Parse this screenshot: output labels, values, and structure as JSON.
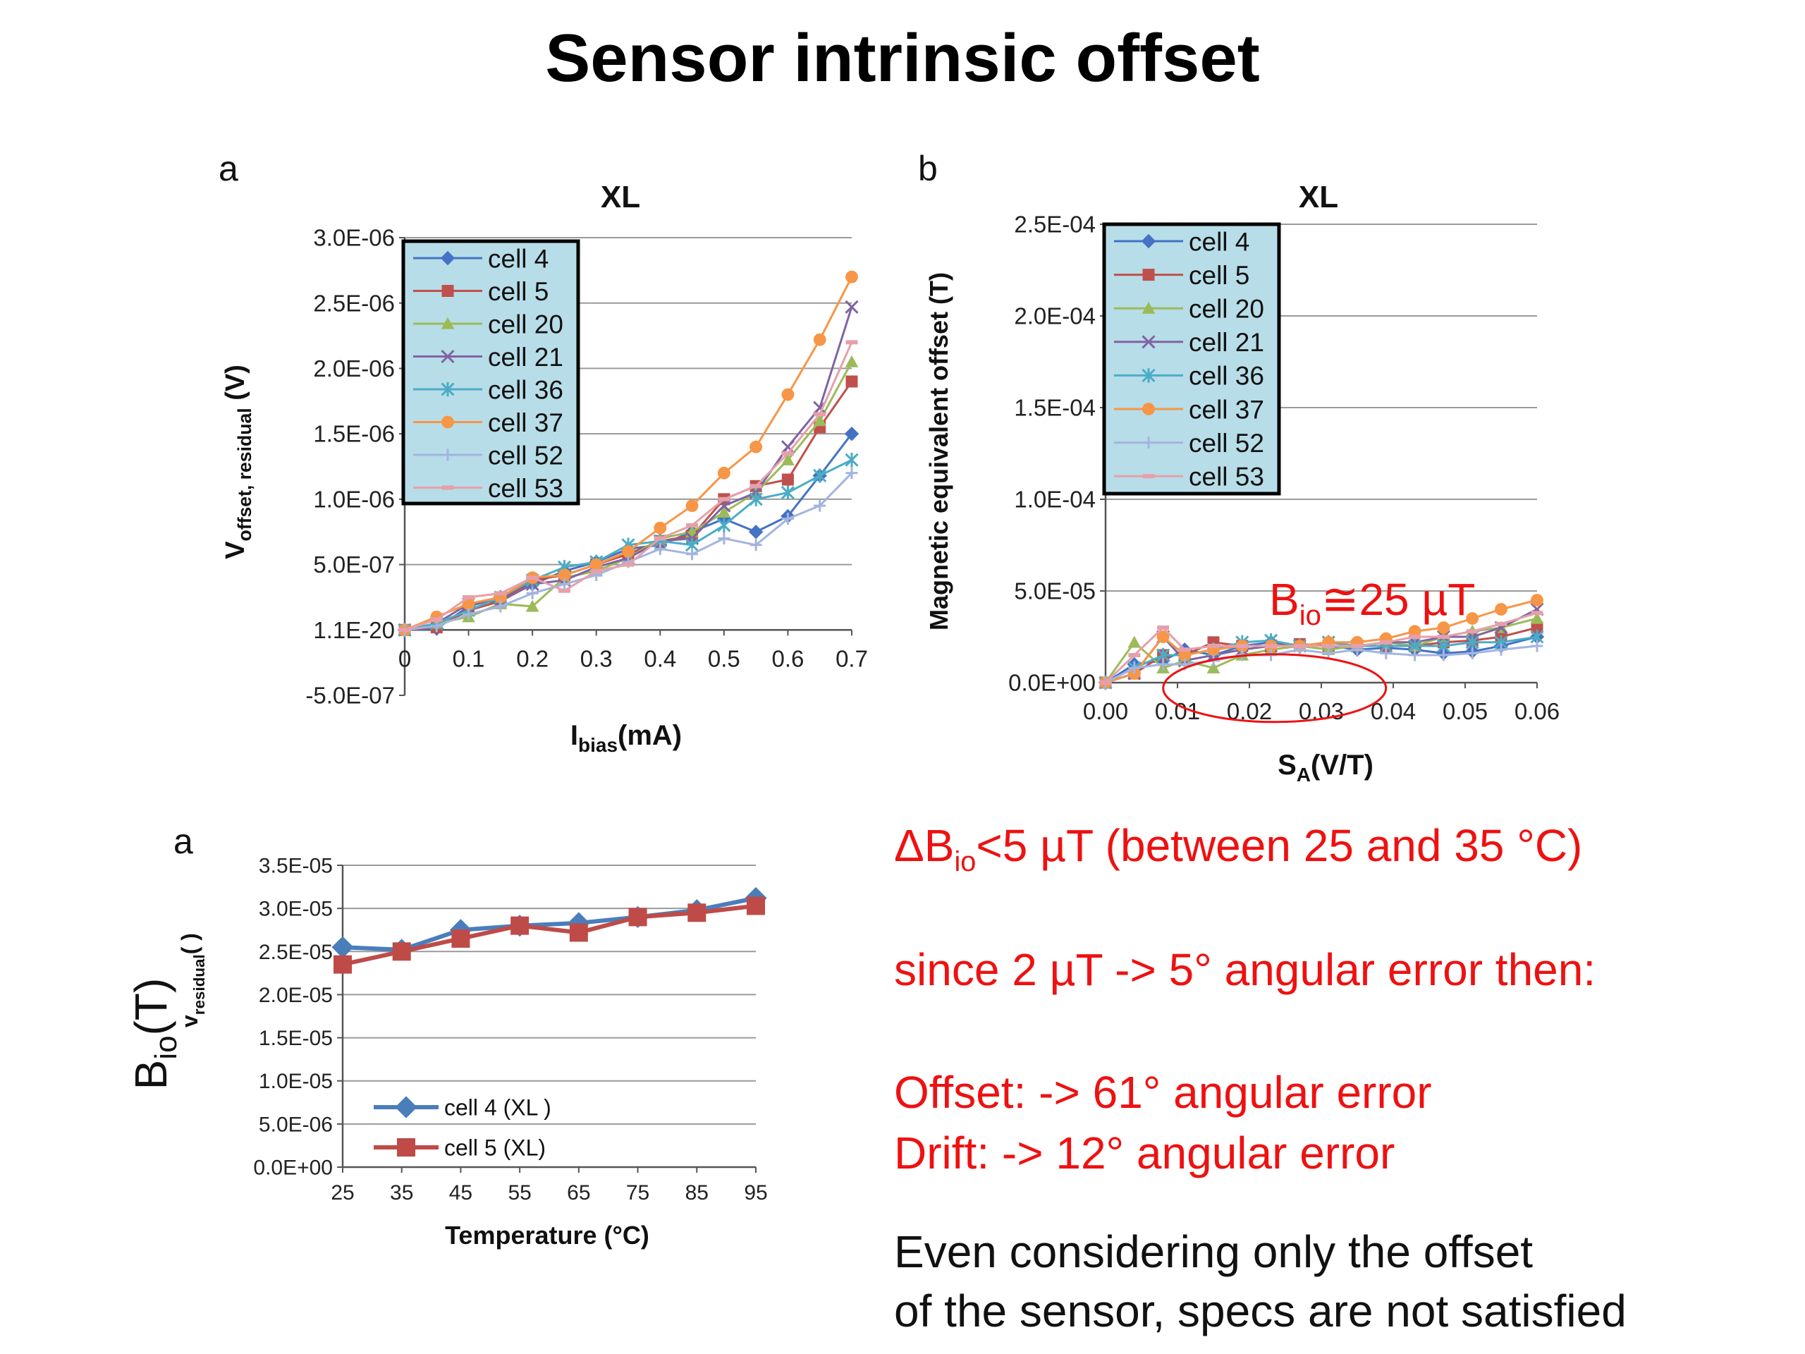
{
  "title": "Sensor intrinsic offset",
  "colors": {
    "cell 4": "#4472c4",
    "cell 5": "#c0504d",
    "cell 20": "#9bbb59",
    "cell 21": "#8064a2",
    "cell 36": "#4bacc6",
    "cell 37": "#f79646",
    "cell 52": "#a3b4e0",
    "cell 53": "#e6a0aa",
    "legend_fill": "#b7dde8",
    "annotation": "#ee1111"
  },
  "markers": {
    "cell 4": "diamond",
    "cell 5": "square",
    "cell 20": "triangle",
    "cell 21": "x",
    "cell 36": "asterisk",
    "cell 37": "circle",
    "cell 52": "plus",
    "cell 53": "dash"
  },
  "chart_data": [
    {
      "panel_label": "a",
      "type": "line",
      "title": "XL",
      "xlabel_main": "I",
      "xlabel_sub": "bias",
      "xlabel_unit": "(mA)",
      "ylabel_main": "V",
      "ylabel_sub": "offset, residual",
      "ylabel_unit": " (V)",
      "xlim": [
        0,
        0.7
      ],
      "ylim": [
        -5e-07,
        3e-06
      ],
      "yticks": [
        -5e-07,
        1.1e-20,
        5e-07,
        1e-06,
        1.5e-06,
        2e-06,
        2.5e-06,
        3e-06
      ],
      "ytick_labels": [
        "-5.0E-07",
        "1.1E-20",
        "5.0E-07",
        "1.0E-06",
        "1.5E-06",
        "2.0E-06",
        "2.5E-06",
        "3.0E-06"
      ],
      "xticks": [
        0,
        0.1,
        0.2,
        0.3,
        0.4,
        0.5,
        0.6,
        0.7
      ],
      "xtick_labels": [
        "0",
        "0.1",
        "0.2",
        "0.3",
        "0.4",
        "0.5",
        "0.6",
        "0.7"
      ],
      "grid": true,
      "legend_position": "top-left",
      "x": [
        0,
        0.05,
        0.1,
        0.15,
        0.2,
        0.25,
        0.3,
        0.35,
        0.4,
        0.45,
        0.5,
        0.55,
        0.6,
        0.65,
        0.7
      ],
      "series": [
        {
          "name": "cell 4",
          "values": [
            0,
            1e-08,
            1.8e-07,
            2.5e-07,
            3.5e-07,
            4.5e-07,
            5.2e-07,
            6.2e-07,
            6.5e-07,
            7.5e-07,
            8.5e-07,
            7.5e-07,
            8.7e-07,
            1.18e-06,
            1.5e-06
          ]
        },
        {
          "name": "cell 5",
          "values": [
            0,
            2e-08,
            1.5e-07,
            2.2e-07,
            3.8e-07,
            4.2e-07,
            5e-07,
            5.8e-07,
            6.8e-07,
            7.2e-07,
            1e-06,
            1.1e-06,
            1.15e-06,
            1.55e-06,
            1.9e-06
          ]
        },
        {
          "name": "cell 20",
          "values": [
            0,
            5e-08,
            1e-07,
            2e-07,
            1.8e-07,
            4e-07,
            4.5e-07,
            5.5e-07,
            7e-07,
            7.5e-07,
            9e-07,
            1.05e-06,
            1.3e-06,
            1.6e-06,
            2.05e-06
          ]
        },
        {
          "name": "cell 21",
          "values": [
            0,
            5e-08,
            2e-07,
            2.2e-07,
            3.5e-07,
            3.8e-07,
            4.8e-07,
            5.5e-07,
            6.8e-07,
            7e-07,
            9.5e-07,
            1.05e-06,
            1.4e-06,
            1.7e-06,
            2.47e-06
          ]
        },
        {
          "name": "cell 36",
          "values": [
            0,
            5e-08,
            1.5e-07,
            2.5e-07,
            3.8e-07,
            4.8e-07,
            5.2e-07,
            6.5e-07,
            6.8e-07,
            6.5e-07,
            8e-07,
            1e-06,
            1.05e-06,
            1.18e-06,
            1.3e-06
          ]
        },
        {
          "name": "cell 37",
          "values": [
            0,
            1e-07,
            2e-07,
            2.5e-07,
            4e-07,
            4.2e-07,
            5e-07,
            6e-07,
            7.8e-07,
            9.5e-07,
            1.2e-06,
            1.4e-06,
            1.8e-06,
            2.22e-06,
            2.7e-06
          ]
        },
        {
          "name": "cell 52",
          "values": [
            0,
            3e-08,
            1.2e-07,
            1.8e-07,
            2.8e-07,
            3.5e-07,
            4.2e-07,
            5.2e-07,
            6.2e-07,
            5.8e-07,
            7e-07,
            6.5e-07,
            8.5e-07,
            9.5e-07,
            1.2e-06
          ]
        },
        {
          "name": "cell 53",
          "values": [
            0,
            8e-08,
            2.5e-07,
            2.8e-07,
            4e-07,
            3e-07,
            4.5e-07,
            5e-07,
            7e-07,
            8e-07,
            1e-06,
            1.1e-06,
            1.35e-06,
            1.65e-06,
            2.2e-06
          ]
        }
      ]
    },
    {
      "panel_label": "b",
      "type": "line",
      "title": "XL",
      "xlabel_main": "S",
      "xlabel_sub": "A",
      "xlabel_unit": "(V/T)",
      "ylabel_main": "Magnetic equivalent offset",
      "ylabel_unit": "  (T)",
      "xlim": [
        0,
        0.06
      ],
      "ylim": [
        0,
        0.00025
      ],
      "yticks": [
        0,
        5e-05,
        0.0001,
        0.00015,
        0.0002,
        0.00025
      ],
      "ytick_labels": [
        "0.0E+00",
        "5.0E-05",
        "1.0E-04",
        "1.5E-04",
        "2.0E-04",
        "2.5E-04"
      ],
      "xticks": [
        0,
        0.01,
        0.02,
        0.03,
        0.04,
        0.05,
        0.06
      ],
      "xtick_labels": [
        "0.00",
        "0.01",
        "0.02",
        "0.03",
        "0.04",
        "0.05",
        "0.06"
      ],
      "grid": true,
      "legend_position": "top-left",
      "annotation": "B",
      "annotation_sub": "io",
      "annotation_rest": "≅25 µT",
      "x": [
        0,
        0.004,
        0.008,
        0.011,
        0.015,
        0.019,
        0.023,
        0.027,
        0.031,
        0.035,
        0.039,
        0.043,
        0.047,
        0.051,
        0.055,
        0.06
      ],
      "series": [
        {
          "name": "cell 4",
          "values": [
            0,
            1e-05,
            1.2e-05,
            1.8e-05,
            1.5e-05,
            2e-05,
            2.2e-05,
            2e-05,
            2e-05,
            1.8e-05,
            1.9e-05,
            1.8e-05,
            1.6e-05,
            1.7e-05,
            2e-05,
            2.5e-05
          ]
        },
        {
          "name": "cell 5",
          "values": [
            0,
            5e-06,
            1.5e-05,
            1.5e-05,
            2.2e-05,
            2e-05,
            2e-05,
            2.1e-05,
            2e-05,
            2e-05,
            2e-05,
            2e-05,
            2.2e-05,
            2.3e-05,
            2.5e-05,
            3e-05
          ]
        },
        {
          "name": "cell 20",
          "values": [
            0,
            2.2e-05,
            8e-06,
            1.2e-05,
            8e-06,
            1.5e-05,
            1.8e-05,
            2e-05,
            1.8e-05,
            2e-05,
            2.2e-05,
            2e-05,
            2.5e-05,
            2.8e-05,
            3e-05,
            3.5e-05
          ]
        },
        {
          "name": "cell 21",
          "values": [
            0,
            5e-06,
            2.5e-05,
            1.2e-05,
            1.5e-05,
            1.8e-05,
            2e-05,
            2e-05,
            2.2e-05,
            2e-05,
            2.2e-05,
            2.2e-05,
            2.5e-05,
            2.5e-05,
            3e-05,
            4e-05
          ]
        },
        {
          "name": "cell 36",
          "values": [
            0,
            8e-06,
            1.5e-05,
            1.5e-05,
            1.8e-05,
            2.2e-05,
            2.3e-05,
            2e-05,
            2.2e-05,
            2e-05,
            2e-05,
            2e-05,
            2e-05,
            2.2e-05,
            2.2e-05,
            2.5e-05
          ]
        },
        {
          "name": "cell 37",
          "values": [
            0,
            5e-06,
            2.5e-05,
            1.5e-05,
            1.8e-05,
            2e-05,
            2e-05,
            2e-05,
            2.2e-05,
            2.2e-05,
            2.4e-05,
            2.8e-05,
            3e-05,
            3.5e-05,
            4e-05,
            4.5e-05
          ]
        },
        {
          "name": "cell 52",
          "values": [
            0,
            8e-06,
            1e-05,
            1e-05,
            1.2e-05,
            1.5e-05,
            1.5e-05,
            1.8e-05,
            1.6e-05,
            1.8e-05,
            1.6e-05,
            1.5e-05,
            1.5e-05,
            1.6e-05,
            1.8e-05,
            2e-05
          ]
        },
        {
          "name": "cell 53",
          "values": [
            0,
            1.5e-05,
            3e-05,
            1.8e-05,
            2e-05,
            2e-05,
            2e-05,
            2e-05,
            2e-05,
            2e-05,
            2.2e-05,
            2.5e-05,
            2.5e-05,
            2.8e-05,
            3.2e-05,
            3.8e-05
          ]
        }
      ]
    },
    {
      "panel_label": "a",
      "type": "line",
      "title": "",
      "xlabel_main": "Temperature (°C)",
      "ylabel_main": "v",
      "ylabel_sub": "residual",
      "ylabel_unit": "( )",
      "outer_ylabel": "B",
      "outer_ylabel_sub": "io",
      "outer_ylabel_unit": "(T)",
      "xlim": [
        25,
        95
      ],
      "ylim": [
        0,
        3.5e-05
      ],
      "yticks": [
        0,
        5e-06,
        1e-05,
        1.5e-05,
        2e-05,
        2.5e-05,
        3e-05,
        3.5e-05
      ],
      "ytick_labels": [
        "0.0E+00",
        "5.0E-06",
        "1.0E-05",
        "1.5E-05",
        "2.0E-05",
        "2.5E-05",
        "3.0E-05",
        "3.5E-05"
      ],
      "xticks": [
        25,
        35,
        45,
        55,
        65,
        75,
        85,
        95
      ],
      "xtick_labels": [
        "25",
        "35",
        "45",
        "55",
        "65",
        "75",
        "85",
        "95"
      ],
      "grid": true,
      "legend_position": "bottom-left",
      "x": [
        25,
        35,
        45,
        55,
        65,
        75,
        85,
        95
      ],
      "series": [
        {
          "name": "cell 4 (XL )",
          "color": "#4a7ebb",
          "marker": "diamond",
          "values": [
            2.55e-05,
            2.52e-05,
            2.75e-05,
            2.8e-05,
            2.83e-05,
            2.9e-05,
            2.98e-05,
            3.12e-05
          ]
        },
        {
          "name": "cell 5 (XL)",
          "color": "#be4b48",
          "marker": "square",
          "values": [
            2.35e-05,
            2.5e-05,
            2.65e-05,
            2.8e-05,
            2.72e-05,
            2.9e-05,
            2.95e-05,
            3.03e-05
          ]
        }
      ]
    }
  ],
  "notes": {
    "delta_prefix": "ΔB",
    "delta_sub": "io",
    "delta_rest": "<5 µT  (between 25 and 35 °C)",
    "since": "since 2 µT -> 5° angular error then:",
    "offset": "Offset: ->  61° angular error",
    "drift": "Drift:  ->  12° angular error",
    "conclusion_line1": "Even considering only the offset",
    "conclusion_line2": "of the sensor, specs are not satisfied"
  }
}
